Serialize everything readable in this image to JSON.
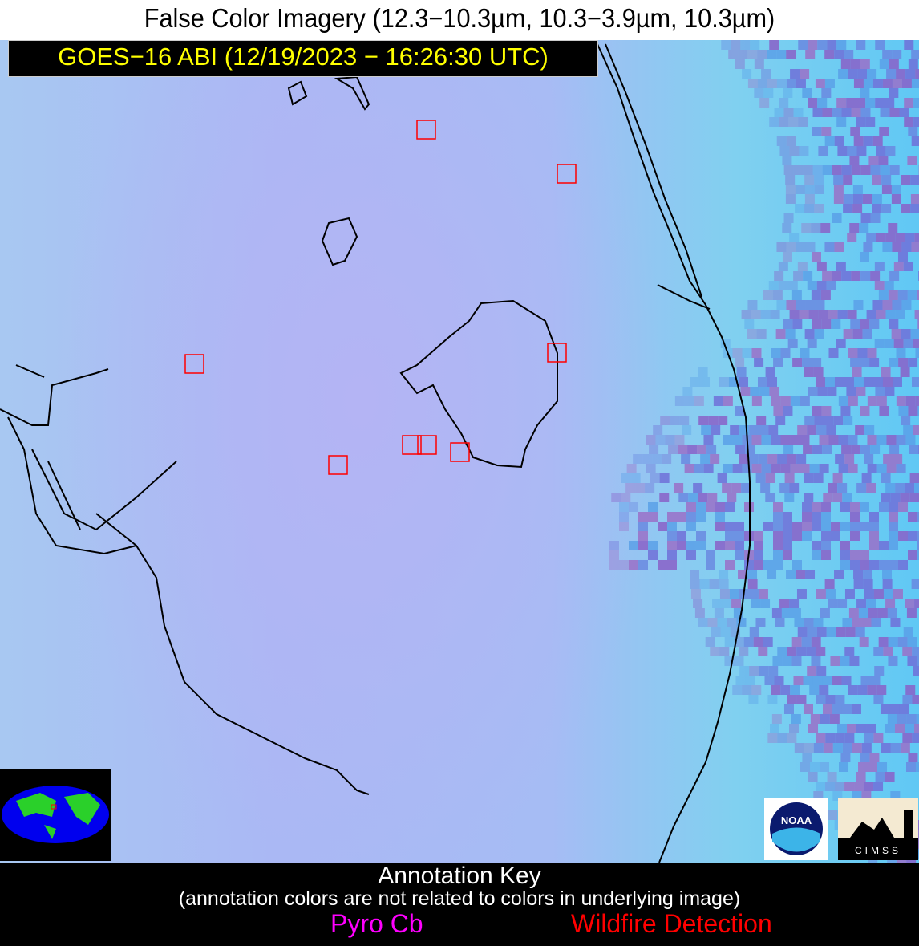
{
  "title": "False Color Imagery (12.3−10.3µm, 10.3−3.9µm, 10.3µm)",
  "subtitle": "GOES−16 ABI (12/19/2023 − 16:26:30 UTC)",
  "detections": {
    "color": "#ff0000",
    "count": 8
  },
  "logos": {
    "noaa": "NOAA",
    "cimss": "CIMSS"
  },
  "key": {
    "heading": "Annotation Key",
    "note": "(annotation colors are not related to colors in underlying image)",
    "items": [
      {
        "label": "Pyro Cb",
        "color": "#ff00ff"
      },
      {
        "label": "Wildfire Detection",
        "color": "#ff0000"
      }
    ]
  }
}
